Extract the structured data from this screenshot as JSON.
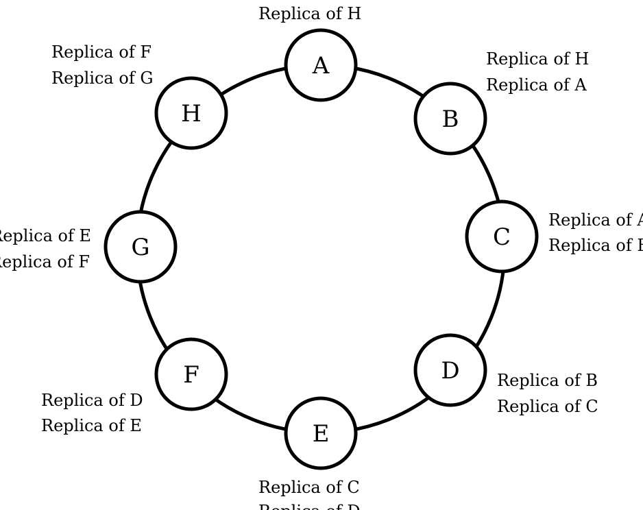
{
  "nodes": [
    {
      "id": "A",
      "label": "A",
      "replicas": [
        "Replica of H"
      ]
    },
    {
      "id": "B",
      "label": "B",
      "replicas": [
        "Replica of H",
        "Replica of A"
      ]
    },
    {
      "id": "C",
      "label": "C",
      "replicas": [
        "Replica of A",
        "Replica of B"
      ]
    },
    {
      "id": "D",
      "label": "D",
      "replicas": [
        "Replica of B",
        "Replica of C"
      ]
    },
    {
      "id": "E",
      "label": "E",
      "replicas": [
        "Replica of C",
        "Replica of D"
      ]
    },
    {
      "id": "F",
      "label": "F",
      "replicas": [
        "Replica of D",
        "Replica of E"
      ]
    },
    {
      "id": "G",
      "label": "G",
      "replicas": [
        "Replica of E",
        "Replica of F"
      ]
    },
    {
      "id": "H",
      "label": "H",
      "replicas": [
        "Replica of F",
        "Replica of G"
      ]
    }
  ]
}
